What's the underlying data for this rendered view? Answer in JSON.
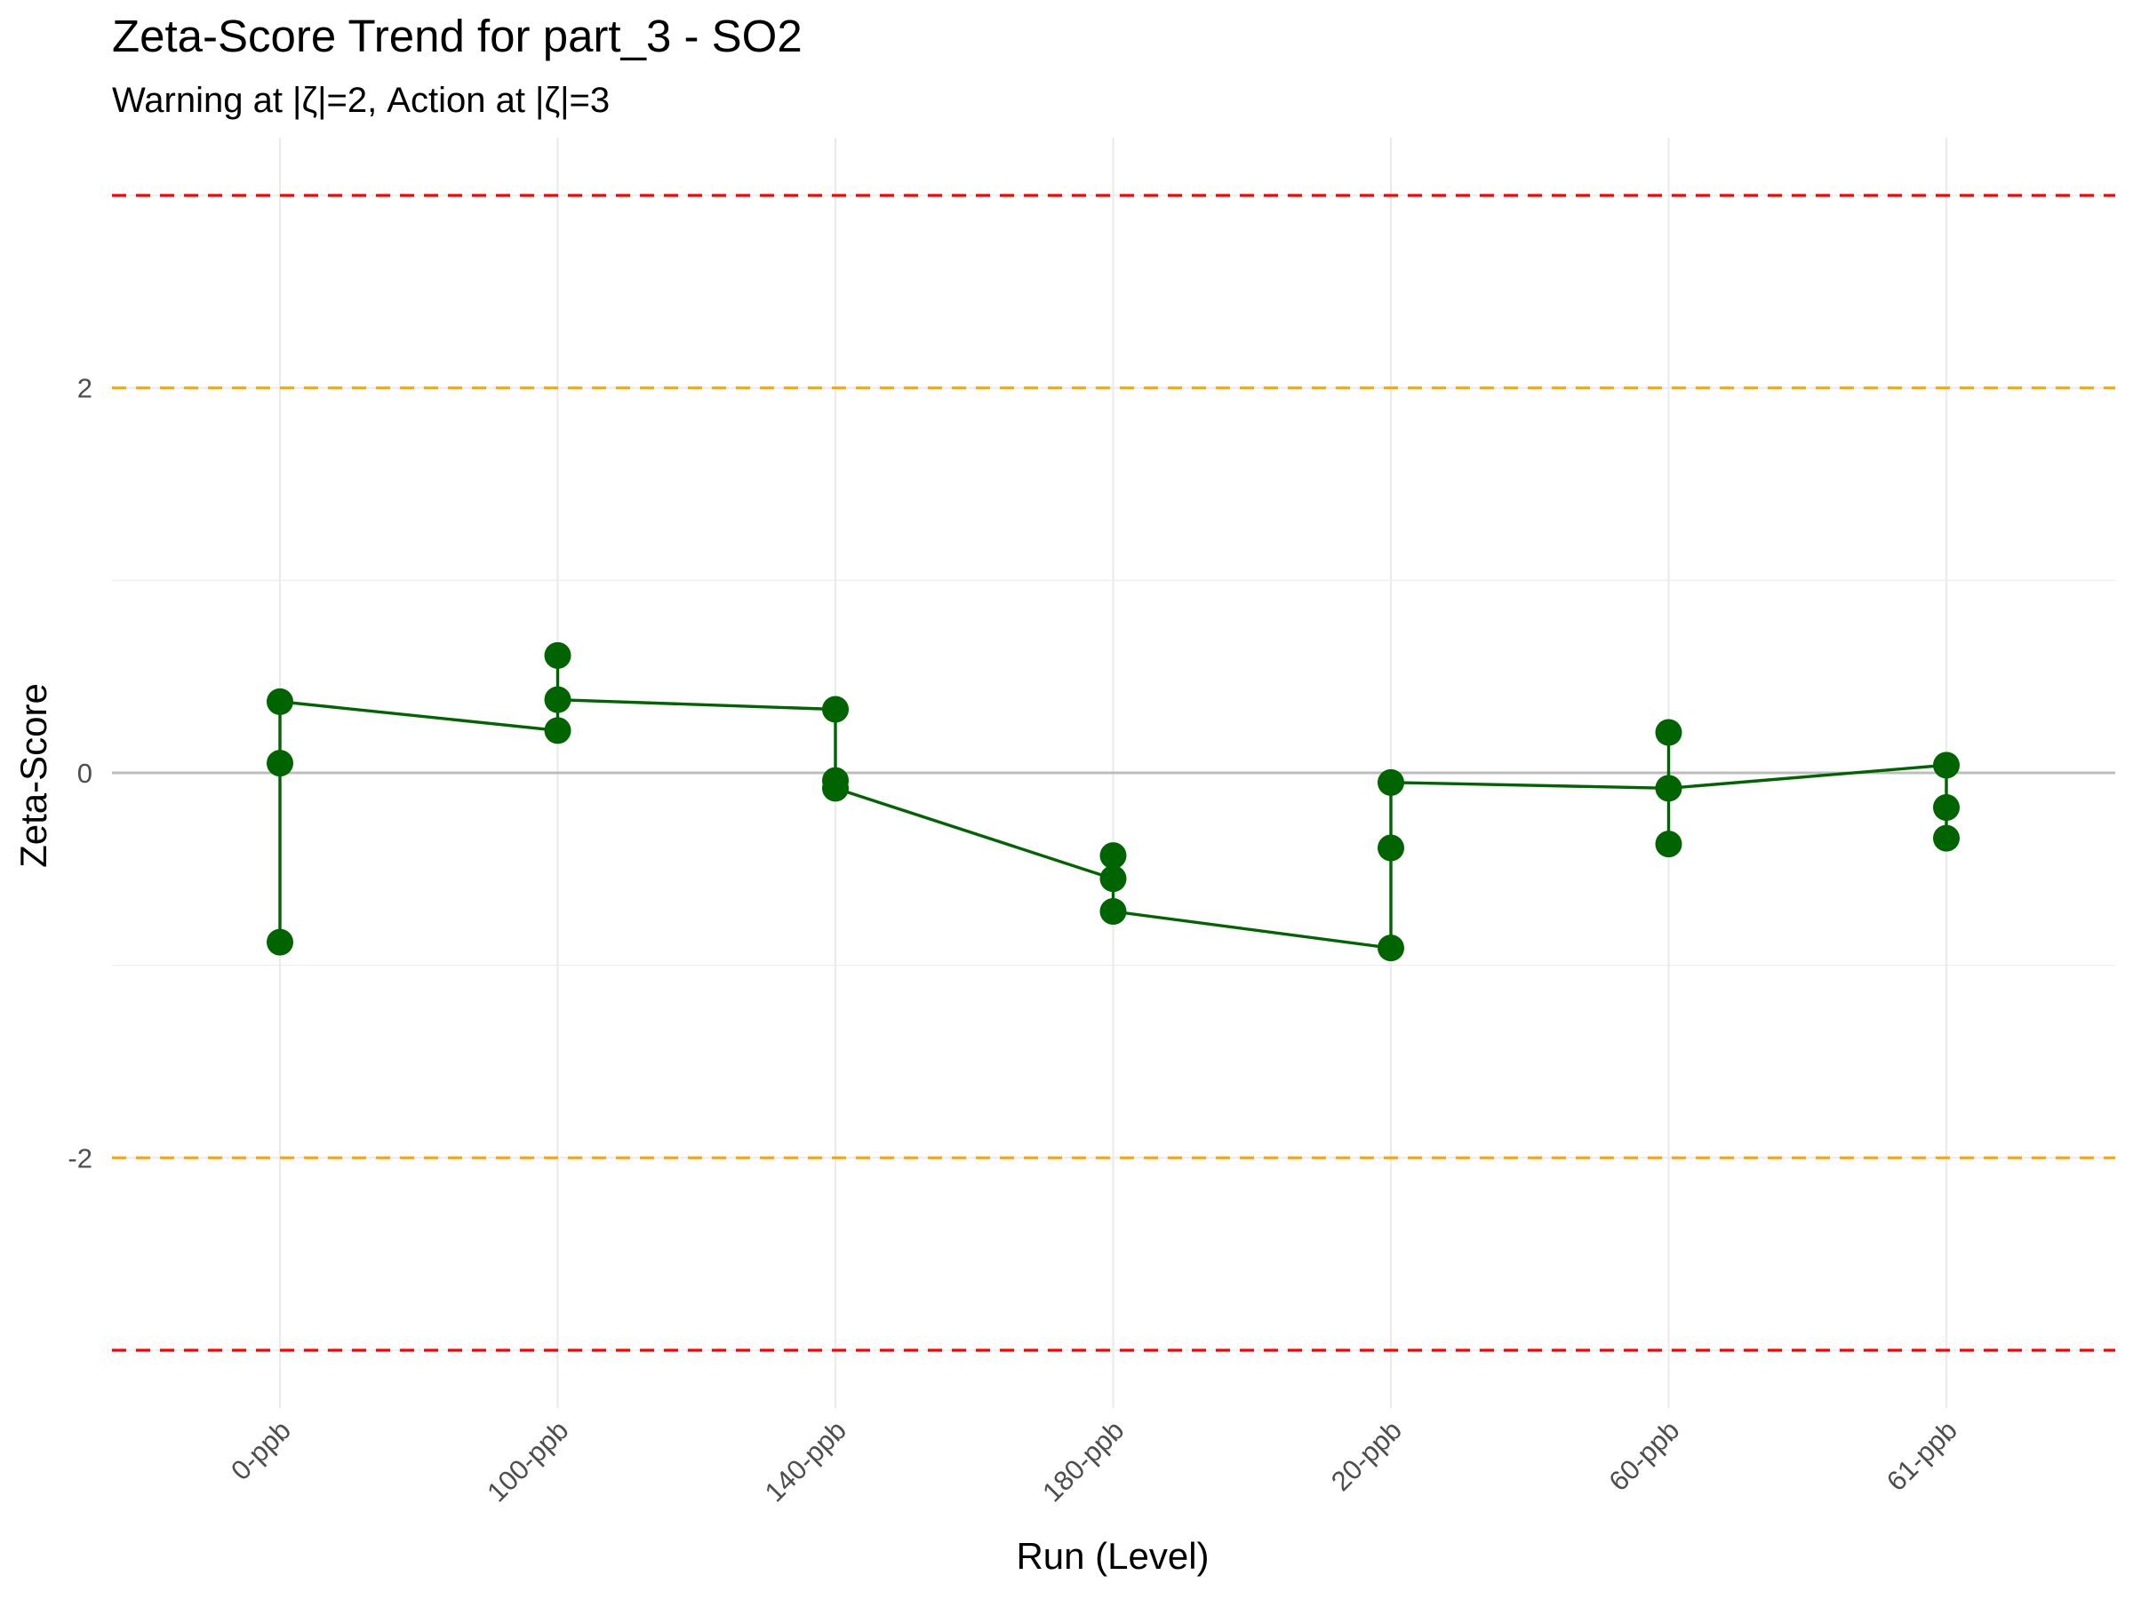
{
  "chart_data": {
    "type": "line",
    "title": "Zeta-Score Trend for part_3 - SO2",
    "subtitle": "Warning at |ζ|=2, Action at |ζ|=3",
    "xlabel": "Run (Level)",
    "ylabel": "Zeta-Score",
    "categories": [
      "0-ppb",
      "100-ppb",
      "140-ppb",
      "180-ppb",
      "20-ppb",
      "60-ppb",
      "61-ppb"
    ],
    "y_ticks": [
      -2,
      0,
      2
    ],
    "y_tick_labels": [
      "-2",
      "0",
      "2"
    ],
    "ylim": [
      -3.3,
      3.3
    ],
    "grid": true,
    "colors": {
      "series": "#006400",
      "warning": "#FFA500",
      "action": "#FF0000",
      "zero": "#bdbdbd",
      "grid": "#ebebeb"
    },
    "reference_lines": [
      {
        "value": 3,
        "kind": "action"
      },
      {
        "value": 2,
        "kind": "warning"
      },
      {
        "value": 0,
        "kind": "zero"
      },
      {
        "value": -2,
        "kind": "warning"
      },
      {
        "value": -3,
        "kind": "action"
      }
    ],
    "points": [
      {
        "x": "0-ppb",
        "y": 0.37
      },
      {
        "x": "0-ppb",
        "y": 0.05
      },
      {
        "x": "0-ppb",
        "y": -0.88
      },
      {
        "x": "100-ppb",
        "y": 0.61
      },
      {
        "x": "100-ppb",
        "y": 0.38
      },
      {
        "x": "100-ppb",
        "y": 0.22
      },
      {
        "x": "140-ppb",
        "y": 0.33
      },
      {
        "x": "140-ppb",
        "y": -0.04
      },
      {
        "x": "140-ppb",
        "y": -0.08
      },
      {
        "x": "180-ppb",
        "y": -0.43
      },
      {
        "x": "180-ppb",
        "y": -0.55
      },
      {
        "x": "180-ppb",
        "y": -0.72
      },
      {
        "x": "20-ppb",
        "y": -0.05
      },
      {
        "x": "20-ppb",
        "y": -0.39
      },
      {
        "x": "20-ppb",
        "y": -0.91
      },
      {
        "x": "60-ppb",
        "y": 0.21
      },
      {
        "x": "60-ppb",
        "y": -0.08
      },
      {
        "x": "60-ppb",
        "y": -0.37
      },
      {
        "x": "61-ppb",
        "y": 0.04
      },
      {
        "x": "61-ppb",
        "y": -0.18
      },
      {
        "x": "61-ppb",
        "y": -0.34
      }
    ],
    "path": [
      {
        "x": "0-ppb",
        "y": 0.37
      },
      {
        "x": "0-ppb",
        "y": 0.05
      },
      {
        "x": "0-ppb",
        "y": -0.88
      },
      {
        "x": "0-ppb",
        "y": 0.37
      },
      {
        "x": "100-ppb",
        "y": 0.22
      },
      {
        "x": "100-ppb",
        "y": 0.61
      },
      {
        "x": "100-ppb",
        "y": 0.38
      },
      {
        "x": "140-ppb",
        "y": 0.33
      },
      {
        "x": "140-ppb",
        "y": -0.04
      },
      {
        "x": "140-ppb",
        "y": -0.08
      },
      {
        "x": "180-ppb",
        "y": -0.55
      },
      {
        "x": "180-ppb",
        "y": -0.43
      },
      {
        "x": "180-ppb",
        "y": -0.72
      },
      {
        "x": "20-ppb",
        "y": -0.91
      },
      {
        "x": "20-ppb",
        "y": -0.39
      },
      {
        "x": "20-ppb",
        "y": -0.05
      },
      {
        "x": "60-ppb",
        "y": -0.08
      },
      {
        "x": "60-ppb",
        "y": 0.21
      },
      {
        "x": "60-ppb",
        "y": -0.37
      },
      {
        "x": "60-ppb",
        "y": -0.08
      },
      {
        "x": "61-ppb",
        "y": 0.04
      },
      {
        "x": "61-ppb",
        "y": -0.18
      },
      {
        "x": "61-ppb",
        "y": -0.34
      }
    ]
  }
}
